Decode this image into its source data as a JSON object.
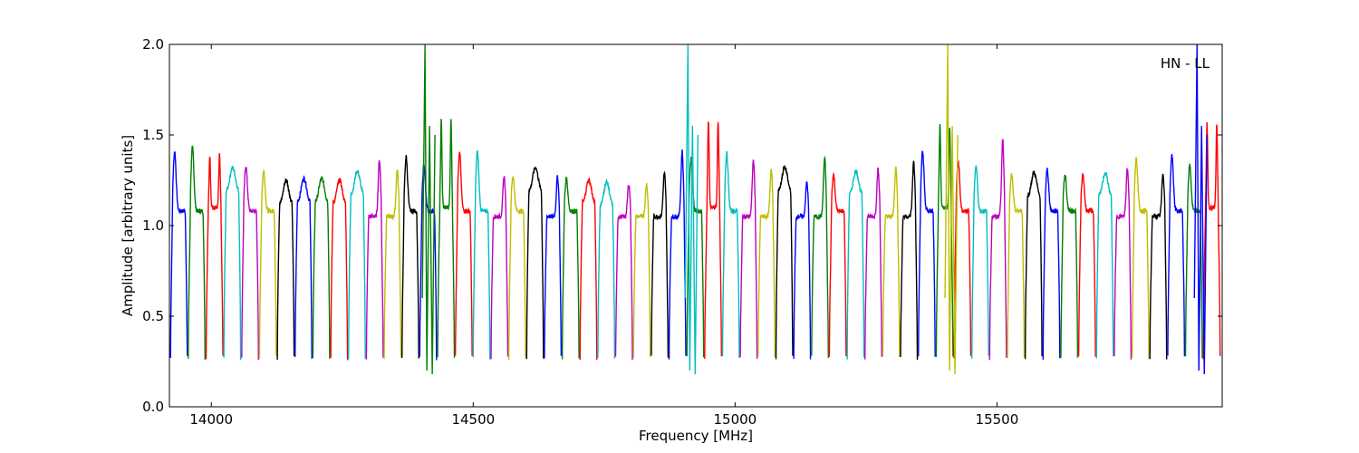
{
  "chart_data": {
    "type": "line",
    "title": "",
    "annotation": "HN - LL",
    "xlabel": "Frequency [MHz]",
    "ylabel": "Amplitude [arbitrary units]",
    "xlim": [
      13920,
      15930
    ],
    "ylim": [
      0.0,
      2.0
    ],
    "x_ticks": [
      14000,
      14500,
      15000,
      15500
    ],
    "y_ticks": [
      0.0,
      0.5,
      1.0,
      1.5,
      2.0
    ],
    "x_tick_labels": [
      "14000",
      "14500",
      "15000",
      "15500"
    ],
    "y_tick_labels": [
      "0.0",
      "0.5",
      "1.0",
      "1.5",
      "2.0"
    ],
    "grid": false,
    "channel_width_mhz": 32,
    "series_colors": [
      "#0000ff",
      "#007f00",
      "#ff0000",
      "#00bfbf",
      "#bf00bf",
      "#bfbf00",
      "#000000"
    ],
    "channels": [
      {
        "start": 13922,
        "peak": 1.41,
        "shape": "left"
      },
      {
        "start": 13956,
        "peak": 1.43,
        "shape": "left"
      },
      {
        "start": 13990,
        "peak": 1.39,
        "shape": "double"
      },
      {
        "start": 14024,
        "peak": 1.26,
        "shape": "flat"
      },
      {
        "start": 14058,
        "peak": 1.33,
        "shape": "left"
      },
      {
        "start": 14092,
        "peak": 1.3,
        "shape": "left"
      },
      {
        "start": 14126,
        "peak": 1.19,
        "shape": "flat"
      },
      {
        "start": 14160,
        "peak": 1.2,
        "shape": "flat"
      },
      {
        "start": 14194,
        "peak": 1.2,
        "shape": "flat"
      },
      {
        "start": 14228,
        "peak": 1.19,
        "shape": "flat"
      },
      {
        "start": 14262,
        "peak": 1.24,
        "shape": "flat"
      },
      {
        "start": 14296,
        "peak": 1.36,
        "shape": "right"
      },
      {
        "start": 14330,
        "peak": 1.31,
        "shape": "right"
      },
      {
        "start": 14364,
        "peak": 1.38,
        "shape": "left"
      },
      {
        "start": 14398,
        "peak": 1.33,
        "shape": "left"
      },
      {
        "start": 14432,
        "peak": 1.58,
        "shape": "double"
      },
      {
        "start": 14466,
        "peak": 1.4,
        "shape": "left"
      },
      {
        "start": 14500,
        "peak": 1.41,
        "shape": "left"
      },
      {
        "start": 14534,
        "peak": 1.27,
        "shape": "right"
      },
      {
        "start": 14568,
        "peak": 1.27,
        "shape": "left"
      },
      {
        "start": 14602,
        "peak": 1.26,
        "shape": "flat"
      },
      {
        "start": 14636,
        "peak": 1.27,
        "shape": "right"
      },
      {
        "start": 14670,
        "peak": 1.26,
        "shape": "left"
      },
      {
        "start": 14704,
        "peak": 1.19,
        "shape": "flat"
      },
      {
        "start": 14738,
        "peak": 1.18,
        "shape": "flat"
      },
      {
        "start": 14772,
        "peak": 1.23,
        "shape": "right"
      },
      {
        "start": 14806,
        "peak": 1.23,
        "shape": "right"
      },
      {
        "start": 14840,
        "peak": 1.29,
        "shape": "right"
      },
      {
        "start": 14874,
        "peak": 1.41,
        "shape": "right"
      },
      {
        "start": 14908,
        "peak": 1.37,
        "shape": "left"
      },
      {
        "start": 14942,
        "peak": 1.58,
        "shape": "double"
      },
      {
        "start": 14976,
        "peak": 1.4,
        "shape": "left"
      },
      {
        "start": 15010,
        "peak": 1.36,
        "shape": "right"
      },
      {
        "start": 15044,
        "peak": 1.31,
        "shape": "right"
      },
      {
        "start": 15078,
        "peak": 1.26,
        "shape": "flat"
      },
      {
        "start": 15112,
        "peak": 1.24,
        "shape": "right"
      },
      {
        "start": 15146,
        "peak": 1.37,
        "shape": "right"
      },
      {
        "start": 15180,
        "peak": 1.28,
        "shape": "left"
      },
      {
        "start": 15214,
        "peak": 1.24,
        "shape": "flat"
      },
      {
        "start": 15248,
        "peak": 1.31,
        "shape": "right"
      },
      {
        "start": 15282,
        "peak": 1.32,
        "shape": "right"
      },
      {
        "start": 15316,
        "peak": 1.35,
        "shape": "right"
      },
      {
        "start": 15350,
        "peak": 1.41,
        "shape": "left"
      },
      {
        "start": 15384,
        "peak": 1.55,
        "shape": "double"
      },
      {
        "start": 15418,
        "peak": 1.35,
        "shape": "left"
      },
      {
        "start": 15452,
        "peak": 1.33,
        "shape": "left"
      },
      {
        "start": 15486,
        "peak": 1.47,
        "shape": "right"
      },
      {
        "start": 15520,
        "peak": 1.28,
        "shape": "left"
      },
      {
        "start": 15554,
        "peak": 1.23,
        "shape": "flat"
      },
      {
        "start": 15588,
        "peak": 1.31,
        "shape": "left"
      },
      {
        "start": 15622,
        "peak": 1.28,
        "shape": "left"
      },
      {
        "start": 15656,
        "peak": 1.28,
        "shape": "left"
      },
      {
        "start": 15690,
        "peak": 1.23,
        "shape": "flat"
      },
      {
        "start": 15724,
        "peak": 1.32,
        "shape": "right"
      },
      {
        "start": 15758,
        "peak": 1.37,
        "shape": "left"
      },
      {
        "start": 15792,
        "peak": 1.29,
        "shape": "right"
      },
      {
        "start": 15826,
        "peak": 1.39,
        "shape": "left"
      },
      {
        "start": 15860,
        "peak": 1.33,
        "shape": "left"
      },
      {
        "start": 15894,
        "peak": 1.56,
        "shape": "double"
      }
    ],
    "spikes": [
      {
        "x": 14408,
        "top": 2.0,
        "color": "#007f00"
      },
      {
        "x": 14910,
        "top": 2.0,
        "color": "#00bfbf"
      },
      {
        "x": 15406,
        "top": 2.0,
        "color": "#bfbf00"
      },
      {
        "x": 15882,
        "top": 2.0,
        "color": "#0000ff"
      }
    ]
  }
}
